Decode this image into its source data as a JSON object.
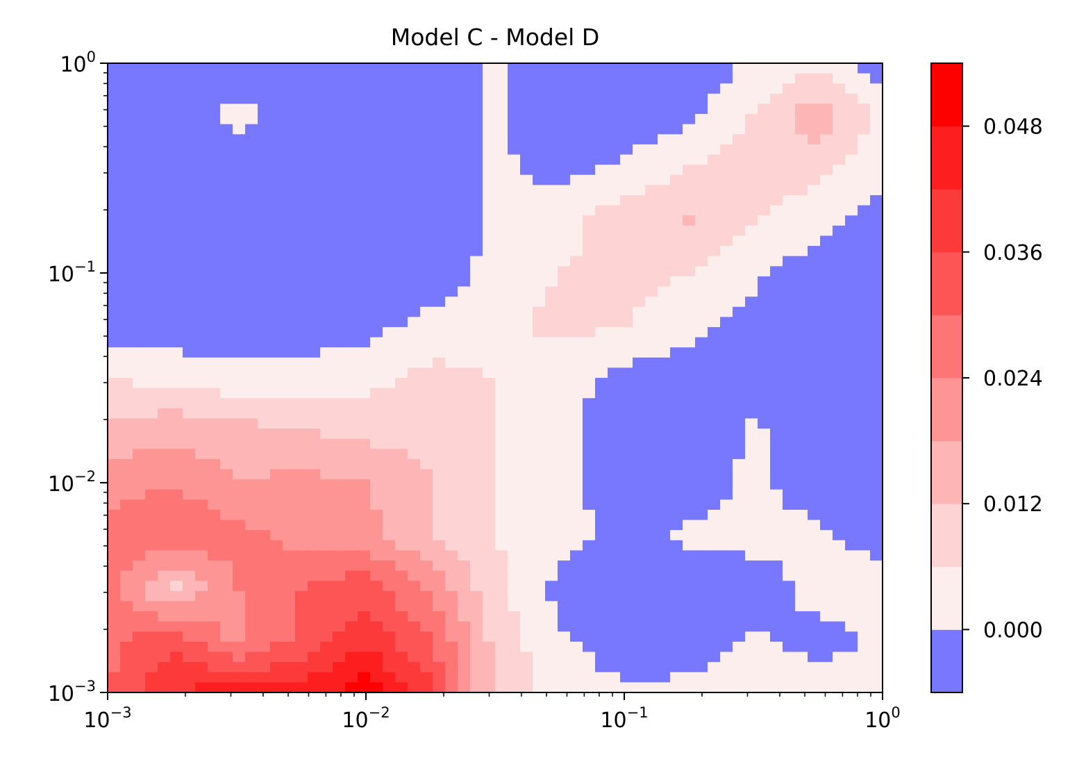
{
  "chart_data": {
    "type": "heatmap",
    "subtype": "filled-contour",
    "title": "Model C - Model D",
    "xlabel": "",
    "ylabel": "",
    "x_scale": "log",
    "y_scale": "log",
    "xlim": [
      0.001,
      1
    ],
    "ylim": [
      0.001,
      1
    ],
    "x_ticks": [
      {
        "base": "10",
        "exp": "−3",
        "value": 0.001
      },
      {
        "base": "10",
        "exp": "−2",
        "value": 0.01
      },
      {
        "base": "10",
        "exp": "−1",
        "value": 0.1
      },
      {
        "base": "10",
        "exp": "0",
        "value": 1
      }
    ],
    "y_ticks": [
      {
        "base": "10",
        "exp": "−3",
        "value": 0.001
      },
      {
        "base": "10",
        "exp": "−2",
        "value": 0.01
      },
      {
        "base": "10",
        "exp": "−1",
        "value": 0.1
      },
      {
        "base": "10",
        "exp": "0",
        "value": 1
      }
    ],
    "colorbar": {
      "levels": [
        -0.006,
        0.0,
        0.006,
        0.012,
        0.018,
        0.024,
        0.03,
        0.036,
        0.042,
        0.048,
        0.054
      ],
      "colors": [
        "#7878ff",
        "#fdeeee",
        "#fdd3d3",
        "#fdb5b5",
        "#fd9595",
        "#fd7575",
        "#fd5555",
        "#fd3a3a",
        "#fd1f1f",
        "#fd0000"
      ],
      "tick_labels": [
        "0.000",
        "0.012",
        "0.024",
        "0.036",
        "0.048"
      ],
      "tick_values": [
        0.0,
        0.012,
        0.024,
        0.036,
        0.048
      ]
    },
    "grid": false,
    "z_grid": {
      "log10_x": [
        -3,
        -2.75,
        -2.5,
        -2.25,
        -2,
        -1.75,
        -1.5,
        -1.25,
        -1,
        -0.75,
        -0.5,
        -0.25,
        0
      ],
      "log10_y": [
        -3,
        -2.75,
        -2.5,
        -2.25,
        -2,
        -1.75,
        -1.5,
        -1.25,
        -1,
        -0.75,
        -0.5,
        -0.25,
        0
      ],
      "z": [
        [
          0.03,
          0.042,
          0.046,
          0.044,
          0.052,
          0.038,
          0.01,
          0.004,
          0.001,
          0.002,
          0.004,
          0.003,
          0.002
        ],
        [
          0.028,
          0.034,
          0.022,
          0.032,
          0.04,
          0.03,
          0.01,
          0.001,
          -0.004,
          -0.004,
          0.001,
          -0.002,
          0.001
        ],
        [
          0.026,
          0.01,
          0.024,
          0.03,
          0.034,
          0.022,
          0.008,
          -0.002,
          -0.004,
          -0.004,
          -0.003,
          0.002,
          0.004
        ],
        [
          0.028,
          0.03,
          0.026,
          0.022,
          0.02,
          0.012,
          0.006,
          0.002,
          -0.002,
          0.001,
          0.002,
          0.001,
          -0.003
        ],
        [
          0.02,
          0.024,
          0.018,
          0.02,
          0.018,
          0.012,
          0.006,
          0.002,
          -0.003,
          -0.003,
          0.001,
          -0.003,
          -0.004
        ],
        [
          0.014,
          0.016,
          0.014,
          0.012,
          0.01,
          0.01,
          0.006,
          0.002,
          -0.003,
          -0.004,
          0.001,
          -0.004,
          -0.004
        ],
        [
          0.006,
          0.004,
          0.002,
          0.002,
          0.004,
          0.008,
          0.006,
          0.002,
          -0.002,
          -0.004,
          -0.003,
          -0.004,
          -0.004
        ],
        [
          -0.004,
          -0.004,
          -0.003,
          -0.003,
          -0.002,
          0.002,
          0.004,
          0.008,
          0.006,
          0.002,
          -0.002,
          -0.004,
          -0.004
        ],
        [
          -0.004,
          -0.004,
          -0.004,
          -0.004,
          -0.004,
          -0.004,
          0.002,
          0.006,
          0.008,
          0.006,
          0.001,
          -0.003,
          -0.004
        ],
        [
          -0.004,
          -0.004,
          -0.004,
          -0.004,
          -0.004,
          -0.004,
          0.001,
          0.003,
          0.01,
          0.012,
          0.006,
          0.002,
          -0.003
        ],
        [
          -0.004,
          -0.004,
          -0.004,
          -0.004,
          -0.004,
          -0.004,
          0.001,
          -0.002,
          0.001,
          0.006,
          0.01,
          0.008,
          0.002
        ],
        [
          -0.004,
          -0.004,
          0.002,
          -0.004,
          -0.004,
          -0.004,
          0.001,
          -0.004,
          -0.004,
          -0.002,
          0.006,
          0.016,
          0.004
        ],
        [
          -0.004,
          -0.004,
          -0.004,
          -0.004,
          -0.004,
          -0.004,
          0.001,
          -0.004,
          -0.004,
          -0.004,
          0.001,
          0.004,
          -0.004
        ]
      ]
    }
  }
}
